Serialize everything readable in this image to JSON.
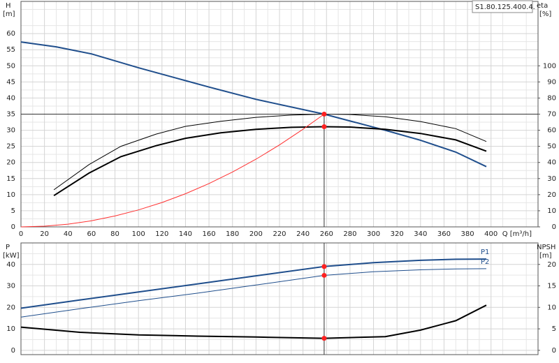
{
  "chart_data": [
    {
      "type": "line",
      "curve_label": "S1.80.125.400.4.",
      "x_label": "Q [m³/h]",
      "y_label": "H",
      "y_unit": "[m]",
      "y2_label": "eta",
      "y2_unit": "[%]",
      "xlim": [
        0,
        440
      ],
      "xticks": [
        0,
        20,
        40,
        60,
        80,
        100,
        120,
        140,
        160,
        180,
        200,
        220,
        240,
        260,
        280,
        300,
        320,
        340,
        360,
        380,
        400
      ],
      "ylim": [
        0,
        70
      ],
      "yticks": [
        0,
        5,
        10,
        15,
        20,
        25,
        30,
        35,
        40,
        45,
        50,
        55,
        60
      ],
      "y2lim": [
        0,
        140
      ],
      "y2ticks": [
        0,
        10,
        20,
        30,
        40,
        50,
        60,
        70,
        80,
        90,
        100
      ],
      "grid": true,
      "minor_grid": true,
      "xtick_labels": true,
      "duty_lines": true,
      "series": [
        {
          "color": "#1f4e8c",
          "line_width": 2,
          "x": [
            0,
            30,
            60,
            100,
            140,
            160,
            200,
            258,
            310,
            340,
            370,
            396
          ],
          "values": [
            57.4,
            55.9,
            53.7,
            49.4,
            45.4,
            43.4,
            39.6,
            35,
            30,
            26.9,
            23.2,
            18.7
          ]
        },
        {
          "color": "#000000",
          "line_width": 1,
          "axis": "y2",
          "x": [
            28,
            58,
            85,
            115,
            140,
            170,
            200,
            230,
            258,
            280,
            310,
            340,
            370,
            396
          ],
          "values": [
            23,
            38.7,
            50,
            57.6,
            62.4,
            65.6,
            68,
            69.4,
            70,
            69.8,
            68.4,
            65.4,
            61,
            53
          ]
        },
        {
          "color": "#000000",
          "line_width": 2,
          "axis": "y2",
          "x": [
            28,
            58,
            85,
            115,
            140,
            170,
            200,
            230,
            258,
            280,
            310,
            340,
            370,
            396
          ],
          "values": [
            19.4,
            33.4,
            43.6,
            50.4,
            55,
            58.4,
            60.6,
            61.8,
            62.2,
            62,
            60.6,
            58,
            54,
            47
          ]
        },
        {
          "color": "#ff3030",
          "line_width": 1,
          "x": [
            0,
            20,
            40,
            60,
            80,
            100,
            120,
            140,
            160,
            180,
            200,
            220,
            240,
            258
          ],
          "values": [
            0,
            0.21,
            0.84,
            1.89,
            3.37,
            5.26,
            7.57,
            10.3,
            13.46,
            17.04,
            21.03,
            25.45,
            30.29,
            35
          ]
        }
      ],
      "markers": [
        {
          "x": 258,
          "y": 35,
          "color": "#ff2020"
        },
        {
          "x": 258,
          "y": 62.2,
          "axis": "y2",
          "color": "#ff2020"
        }
      ]
    },
    {
      "type": "line",
      "y_label": "P",
      "y_unit": "[kW]",
      "y2_label": "NPSH",
      "y2_unit": "[m]",
      "xlim": [
        0,
        440
      ],
      "xticks": [
        0,
        20,
        40,
        60,
        80,
        100,
        120,
        140,
        160,
        180,
        200,
        220,
        240,
        260,
        280,
        300,
        320,
        340,
        360,
        380,
        400
      ],
      "ylim": [
        -2,
        50
      ],
      "yticks": [
        0,
        10,
        20,
        30,
        40
      ],
      "y2lim": [
        -1,
        25
      ],
      "y2ticks": [
        0,
        5,
        10,
        15,
        20
      ],
      "grid": true,
      "minor_grid": true,
      "xtick_labels": false,
      "duty_lines": true,
      "series": [
        {
          "name": "P1",
          "color": "#1f4e8c",
          "line_width": 2,
          "x": [
            0,
            50,
            100,
            150,
            200,
            258,
            300,
            340,
            370,
            396
          ],
          "values": [
            19.6,
            23.4,
            27.2,
            30.9,
            34.7,
            39,
            40.8,
            41.9,
            42.4,
            42.5
          ]
        },
        {
          "name": "P2",
          "color": "#1f4e8c",
          "line_width": 1,
          "x": [
            0,
            50,
            100,
            150,
            200,
            258,
            300,
            340,
            370,
            396
          ],
          "values": [
            15.5,
            19.4,
            23.1,
            26.6,
            30.4,
            34.9,
            36.6,
            37.5,
            37.9,
            38
          ]
        },
        {
          "color": "#000000",
          "line_width": 2,
          "axis": "y2",
          "x": [
            0,
            50,
            100,
            150,
            200,
            258,
            310,
            340,
            370,
            396
          ],
          "values": [
            5.4,
            4.2,
            3.6,
            3.3,
            3.1,
            2.8,
            3.2,
            4.7,
            6.9,
            10.5
          ]
        }
      ],
      "markers": [
        {
          "x": 258,
          "y": 39,
          "color": "#ff2020"
        },
        {
          "x": 258,
          "y": 34.9,
          "color": "#ff2020"
        },
        {
          "x": 258,
          "y": 2.8,
          "axis": "y2",
          "color": "#ff2020"
        }
      ]
    }
  ]
}
